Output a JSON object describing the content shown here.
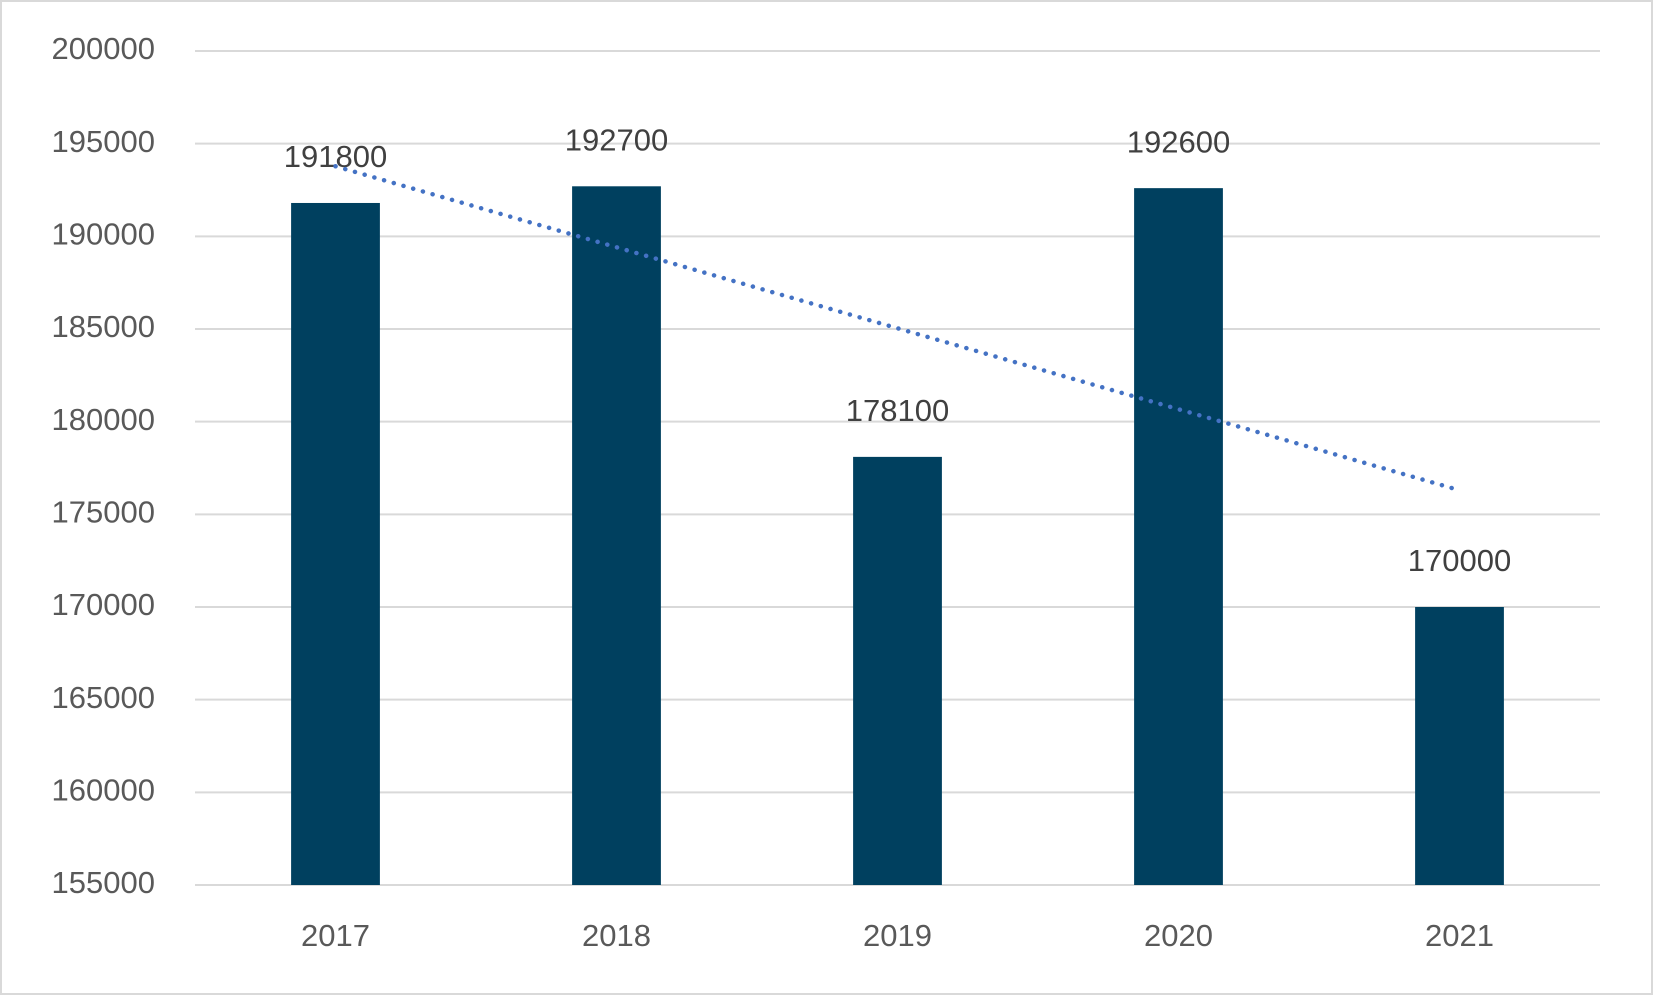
{
  "chart_data": {
    "type": "bar",
    "categories": [
      "2017",
      "2018",
      "2019",
      "2020",
      "2021"
    ],
    "values": [
      191800,
      192700,
      178100,
      192600,
      170000
    ],
    "color": "#00405f",
    "ylim": [
      155000,
      200000
    ],
    "yticks": [
      155000,
      160000,
      165000,
      170000,
      175000,
      180000,
      185000,
      190000,
      195000,
      200000
    ],
    "grid": true,
    "data_labels": true,
    "trendline": {
      "type": "linear",
      "color": "#4472c4",
      "style": "dotted"
    }
  }
}
